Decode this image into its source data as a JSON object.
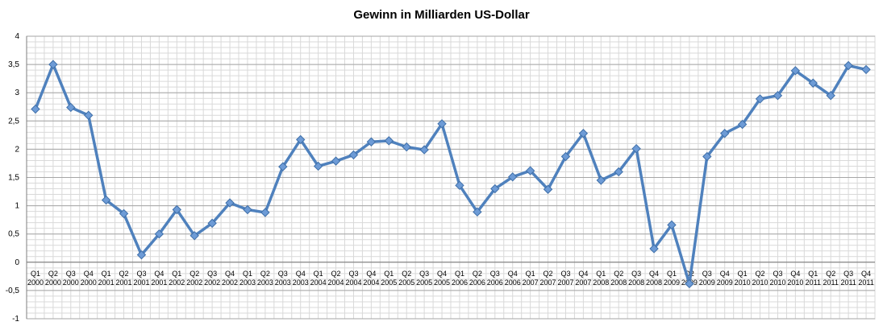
{
  "chart_data": {
    "type": "line",
    "title": "Gewinn in Milliarden US-Dollar",
    "xlabel": "",
    "ylabel": "",
    "ylim": [
      -1,
      4
    ],
    "yticks": [
      "-1",
      "-0,5",
      "0",
      "0,5",
      "1",
      "1,5",
      "2",
      "2,5",
      "3",
      "3,5",
      "4"
    ],
    "grid": true,
    "legend": "none",
    "line_color": "#4f81bd",
    "marker_color": "#6d9bd6",
    "categories": [
      {
        "q": "Q1",
        "y": "2000"
      },
      {
        "q": "Q2",
        "y": "2000"
      },
      {
        "q": "Q3",
        "y": "2000"
      },
      {
        "q": "Q4",
        "y": "2000"
      },
      {
        "q": "Q1",
        "y": "2001"
      },
      {
        "q": "Q2",
        "y": "2001"
      },
      {
        "q": "Q3",
        "y": "2001"
      },
      {
        "q": "Q4",
        "y": "2001"
      },
      {
        "q": "Q1",
        "y": "2002"
      },
      {
        "q": "Q2",
        "y": "2002"
      },
      {
        "q": "Q3",
        "y": "2002"
      },
      {
        "q": "Q4",
        "y": "2002"
      },
      {
        "q": "Q1",
        "y": "2003"
      },
      {
        "q": "Q2",
        "y": "2003"
      },
      {
        "q": "Q3",
        "y": "2003"
      },
      {
        "q": "Q4",
        "y": "2003"
      },
      {
        "q": "Q1",
        "y": "2004"
      },
      {
        "q": "Q2",
        "y": "2004"
      },
      {
        "q": "Q3",
        "y": "2004"
      },
      {
        "q": "Q4",
        "y": "2004"
      },
      {
        "q": "Q1",
        "y": "2005"
      },
      {
        "q": "Q2",
        "y": "2005"
      },
      {
        "q": "Q3",
        "y": "2005"
      },
      {
        "q": "Q4",
        "y": "2005"
      },
      {
        "q": "Q1",
        "y": "2006"
      },
      {
        "q": "Q2",
        "y": "2006"
      },
      {
        "q": "Q3",
        "y": "2006"
      },
      {
        "q": "Q4",
        "y": "2006"
      },
      {
        "q": "Q1",
        "y": "2007"
      },
      {
        "q": "Q2",
        "y": "2007"
      },
      {
        "q": "Q3",
        "y": "2007"
      },
      {
        "q": "Q4",
        "y": "2007"
      },
      {
        "q": "Q1",
        "y": "2008"
      },
      {
        "q": "Q2",
        "y": "2008"
      },
      {
        "q": "Q3",
        "y": "2008"
      },
      {
        "q": "Q4",
        "y": "2008"
      },
      {
        "q": "Q1",
        "y": "2009"
      },
      {
        "q": "Q2",
        "y": "2009"
      },
      {
        "q": "Q3",
        "y": "2009"
      },
      {
        "q": "Q4",
        "y": "2009"
      },
      {
        "q": "Q1",
        "y": "2010"
      },
      {
        "q": "Q2",
        "y": "2010"
      },
      {
        "q": "Q3",
        "y": "2010"
      },
      {
        "q": "Q4",
        "y": "2010"
      },
      {
        "q": "Q1",
        "y": "2011"
      },
      {
        "q": "Q2",
        "y": "2011"
      },
      {
        "q": "Q3",
        "y": "2011"
      },
      {
        "q": "Q4",
        "y": "2011"
      }
    ],
    "series": [
      {
        "values": [
          2.71,
          3.5,
          2.74,
          2.6,
          1.1,
          0.86,
          0.13,
          0.5,
          0.93,
          0.47,
          0.69,
          1.05,
          0.93,
          0.88,
          1.69,
          2.17,
          1.7,
          1.79,
          1.9,
          2.13,
          2.15,
          2.04,
          1.99,
          2.45,
          1.36,
          0.89,
          1.3,
          1.51,
          1.62,
          1.29,
          1.87,
          2.28,
          1.45,
          1.6,
          2.01,
          0.24,
          0.66,
          -0.38,
          1.87,
          2.28,
          2.44,
          2.89,
          2.95,
          3.39,
          3.17,
          2.95,
          3.48,
          3.41
        ]
      }
    ]
  }
}
